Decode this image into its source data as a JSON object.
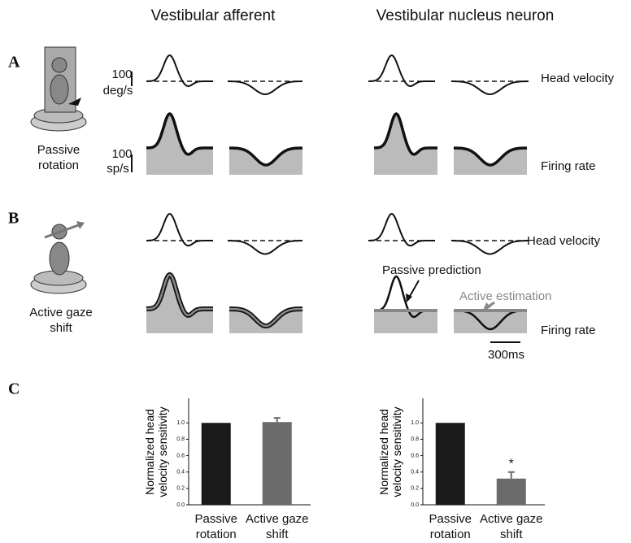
{
  "columns": [
    "Vestibular afferent",
    "Vestibular nucleus neuron"
  ],
  "panels": [
    {
      "label": "A",
      "condition": "Passive rotation",
      "rows": [
        "Head velocity",
        "Firing rate"
      ]
    },
    {
      "label": "B",
      "condition": "Active gaze shift",
      "rows": [
        "Head velocity",
        "Firing rate"
      ],
      "annotations": [
        "Passive prediction",
        "Active estimation"
      ]
    }
  ],
  "scale_bars": {
    "velocity": {
      "value": 100,
      "unit": "deg/s"
    },
    "rate": {
      "value": 100,
      "unit": "sp/s"
    },
    "time": "300ms"
  },
  "panel_c_label": "C",
  "chart_data": [
    {
      "type": "bar",
      "ylabel": "Normalized head velocity sensitivity",
      "categories": [
        "Passive rotation",
        "Active gaze shift"
      ],
      "values": [
        1,
        1.01
      ],
      "errors": [
        null,
        0.05
      ],
      "colors": [
        "#1a1a1a",
        "#6b6b6b"
      ],
      "ylim": [
        0,
        1.3
      ],
      "yticks": [
        {
          "value": 0,
          "label": "0.0"
        },
        0.2,
        0.4,
        0.6,
        0.8,
        {
          "value": 1,
          "label": "1.0"
        }
      ]
    },
    {
      "type": "bar",
      "ylabel": "Normalized head velocity sensitivity",
      "categories": [
        "Passive rotation",
        "Active gaze shift"
      ],
      "values": [
        1,
        0.32
      ],
      "errors": [
        null,
        0.08
      ],
      "colors": [
        "#1a1a1a",
        "#6b6b6b"
      ],
      "ylim": [
        0,
        1.3
      ],
      "annotation": "*",
      "yticks": [
        {
          "value": 0,
          "label": "0.0"
        },
        0.2,
        0.4,
        0.6,
        0.8,
        {
          "value": 1,
          "label": "1.0"
        }
      ]
    }
  ]
}
